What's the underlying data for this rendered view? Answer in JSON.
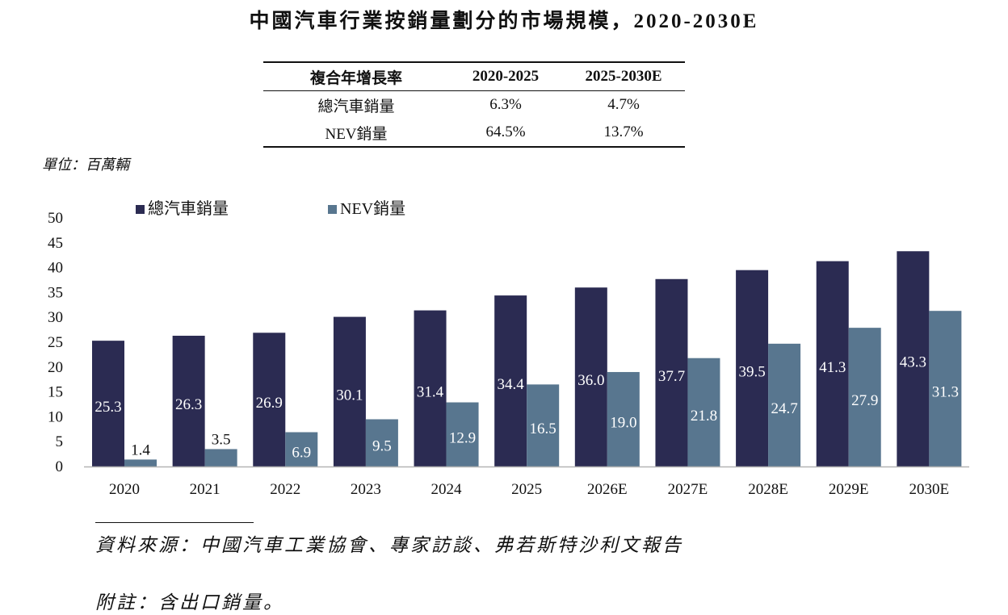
{
  "title": "中國汽車行業按銷量劃分的市場規模，2020-2030E",
  "cagr_table": {
    "headers": [
      "複合年增長率",
      "2020-2025",
      "2025-2030E"
    ],
    "rows": [
      [
        "總汽車銷量",
        "6.3%",
        "4.7%"
      ],
      [
        "NEV銷量",
        "64.5%",
        "13.7%"
      ]
    ]
  },
  "unit": "單位：百萬輛",
  "source": "資料來源：中國汽車工業協會、專家訪談、弗若斯特沙利文報告",
  "footnote": "附註：含出口銷量。",
  "colors": {
    "total": "#2b2b52",
    "nev": "#58768f"
  },
  "chart_data": {
    "type": "bar",
    "categories": [
      "2020",
      "2021",
      "2022",
      "2023",
      "2024",
      "2025",
      "2026E",
      "2027E",
      "2028E",
      "2029E",
      "2030E"
    ],
    "series": [
      {
        "name": "總汽車銷量",
        "values": [
          25.3,
          26.3,
          26.9,
          30.1,
          31.4,
          34.4,
          36.0,
          37.7,
          39.5,
          41.3,
          43.3
        ]
      },
      {
        "name": "NEV銷量",
        "values": [
          1.4,
          3.5,
          6.9,
          9.5,
          12.9,
          16.5,
          19.0,
          21.8,
          24.7,
          27.9,
          31.3
        ]
      }
    ],
    "value_labels": [
      [
        "25.3",
        "26.3",
        "26.9",
        "30.1",
        "31.4",
        "34.4",
        "36.0",
        "37.7",
        "39.5",
        "41.3",
        "43.3"
      ],
      [
        "1.4",
        "3.5",
        "6.9",
        "9.5",
        "12.9",
        "16.5",
        "19.0",
        "21.8",
        "24.7",
        "27.9",
        "31.3"
      ]
    ],
    "yticks": [
      "0",
      "5",
      "10",
      "15",
      "20",
      "25",
      "30",
      "35",
      "40",
      "45",
      "50"
    ],
    "ylim": [
      0,
      50
    ],
    "legend_position": "top-left",
    "grid": false
  }
}
